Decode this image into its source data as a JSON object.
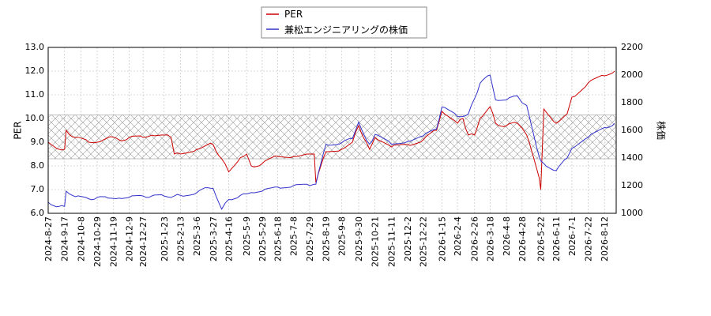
{
  "chart_data": {
    "type": "line",
    "legend": {
      "placement": "top-center",
      "entries": [
        {
          "label": "PER",
          "color": "#cc0000"
        },
        {
          "label": "兼松エンジニアリングの株価",
          "color": "#3333cc"
        }
      ]
    },
    "y_left": {
      "label": "PER",
      "ylim": [
        6.0,
        13.0
      ],
      "ticks": [
        "6.0",
        "7.0",
        "8.0",
        "9.0",
        "10.0",
        "11.0",
        "12.0",
        "13.0"
      ]
    },
    "y_right": {
      "label": "株価",
      "ylim": [
        1000,
        2200
      ],
      "ticks": [
        "1000",
        "1200",
        "1400",
        "1600",
        "1800",
        "2000",
        "2200"
      ]
    },
    "x_range": [
      "2024-08-27",
      "2026-08-27"
    ],
    "x_ticks": [
      "2024-8-27",
      "2024-9-17",
      "2024-10-8",
      "2024-10-29",
      "2024-11-19",
      "2024-12-9",
      "2024-12-27",
      "2025-1-23",
      "2025-2-13",
      "2025-3-6",
      "2025-3-27",
      "2025-4-16",
      "2025-5-9",
      "2025-5-29",
      "2025-6-18",
      "2025-7-8",
      "2025-7-29",
      "2025-8-19",
      "2025-9-8",
      "2025-9-30",
      "2025-10-21",
      "2025-11-11",
      "2025-12-2",
      "2025-12-22",
      "2026-1-15",
      "2026-2-4",
      "2026-2-26",
      "2026-3-18",
      "2026-4-8",
      "2026-4-28",
      "2026-5-22",
      "2026-6-11",
      "2026-7-1",
      "2026-7-22",
      "2026-8-12"
    ],
    "grid": true,
    "band": {
      "from": 8.3,
      "to": 10.15,
      "pattern": "crosshatch"
    },
    "series": [
      {
        "name": "PER",
        "axis": "left",
        "color": "#cc0000",
        "x": [
          "2024-08-27",
          "2024-09-10",
          "2024-09-17",
          "2024-09-19",
          "2024-10-01",
          "2024-10-18",
          "2024-10-29",
          "2024-11-12",
          "2024-11-26",
          "2024-12-09",
          "2024-12-27",
          "2025-01-07",
          "2025-01-23",
          "2025-02-01",
          "2025-02-05",
          "2025-02-13",
          "2025-03-06",
          "2025-03-20",
          "2025-03-27",
          "2025-04-07",
          "2025-04-16",
          "2025-05-01",
          "2025-05-09",
          "2025-05-15",
          "2025-05-29",
          "2025-06-18",
          "2025-07-08",
          "2025-07-29",
          "2025-08-04",
          "2025-08-06",
          "2025-08-19",
          "2025-09-08",
          "2025-09-22",
          "2025-09-30",
          "2025-10-10",
          "2025-10-14",
          "2025-10-21",
          "2025-11-11",
          "2025-12-02",
          "2025-12-22",
          "2026-01-08",
          "2026-01-15",
          "2026-02-04",
          "2026-02-11",
          "2026-02-18",
          "2026-02-26",
          "2026-03-05",
          "2026-03-18",
          "2026-03-25",
          "2026-04-08",
          "2026-04-22",
          "2026-04-28",
          "2026-05-04",
          "2026-05-20",
          "2026-05-22",
          "2026-05-26",
          "2026-06-11",
          "2026-06-25",
          "2026-07-01",
          "2026-07-22",
          "2026-08-12",
          "2026-08-25"
        ],
        "values": [
          9.0,
          8.7,
          8.7,
          9.5,
          9.2,
          9.0,
          9.0,
          9.2,
          9.1,
          9.2,
          9.2,
          9.3,
          9.3,
          9.2,
          8.5,
          8.5,
          8.7,
          8.9,
          8.9,
          8.3,
          7.75,
          8.35,
          8.5,
          8.0,
          8.1,
          8.4,
          8.4,
          8.5,
          8.5,
          7.3,
          8.6,
          8.7,
          9.0,
          9.7,
          9.0,
          8.7,
          9.2,
          8.8,
          8.9,
          9.1,
          9.5,
          10.3,
          9.8,
          10.0,
          9.3,
          9.3,
          10.0,
          10.5,
          9.8,
          9.7,
          9.8,
          9.6,
          9.3,
          7.5,
          7.0,
          10.4,
          9.8,
          10.2,
          10.9,
          11.5,
          11.8,
          12.0
        ]
      },
      {
        "name": "兼松エンジニアリングの株価",
        "axis": "right",
        "color": "#3333cc",
        "x": [
          "2024-08-27",
          "2024-09-10",
          "2024-09-17",
          "2024-09-19",
          "2024-10-01",
          "2024-10-18",
          "2024-10-29",
          "2024-11-12",
          "2024-11-26",
          "2024-12-09",
          "2024-12-27",
          "2025-01-07",
          "2025-01-23",
          "2025-02-01",
          "2025-02-05",
          "2025-02-13",
          "2025-03-06",
          "2025-03-20",
          "2025-03-27",
          "2025-04-07",
          "2025-04-16",
          "2025-05-01",
          "2025-05-09",
          "2025-05-15",
          "2025-05-29",
          "2025-06-18",
          "2025-07-08",
          "2025-07-29",
          "2025-08-04",
          "2025-08-06",
          "2025-08-19",
          "2025-09-08",
          "2025-09-22",
          "2025-09-30",
          "2025-10-10",
          "2025-10-14",
          "2025-10-21",
          "2025-11-11",
          "2025-12-02",
          "2025-12-22",
          "2026-01-08",
          "2026-01-15",
          "2026-02-04",
          "2026-02-11",
          "2026-02-18",
          "2026-02-26",
          "2026-03-05",
          "2026-03-18",
          "2026-03-25",
          "2026-04-08",
          "2026-04-22",
          "2026-04-28",
          "2026-05-04",
          "2026-05-20",
          "2026-05-22",
          "2026-05-26",
          "2026-06-11",
          "2026-06-25",
          "2026-07-01",
          "2026-07-22",
          "2026-08-12",
          "2026-08-25"
        ],
        "values": [
          1080,
          1050,
          1050,
          1160,
          1120,
          1105,
          1115,
          1110,
          1110,
          1115,
          1125,
          1125,
          1125,
          1115,
          1125,
          1130,
          1150,
          1185,
          1180,
          1030,
          1100,
          1130,
          1140,
          1150,
          1160,
          1190,
          1200,
          1200,
          1210,
          1210,
          1500,
          1510,
          1540,
          1660,
          1530,
          1500,
          1570,
          1500,
          1520,
          1560,
          1610,
          1770,
          1700,
          1700,
          1720,
          1830,
          1940,
          2000,
          1820,
          1820,
          1850,
          1800,
          1780,
          1410,
          1380,
          1360,
          1310,
          1400,
          1470,
          1550,
          1620,
          1650
        ]
      }
    ]
  }
}
